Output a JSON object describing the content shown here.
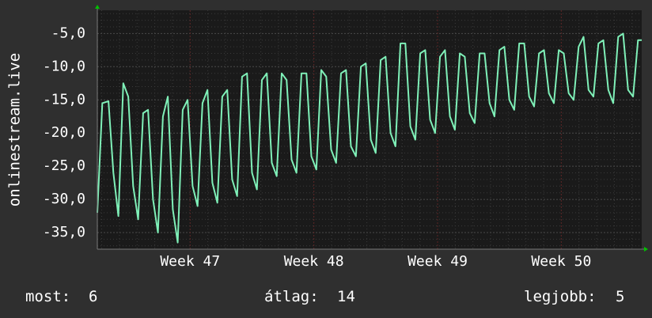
{
  "chart_data": {
    "type": "line",
    "title": "",
    "xlabel": "",
    "ylabel": "onlinestream.live",
    "x_tick_labels": [
      "Week 47",
      "Week 48",
      "Week 49",
      "Week 50"
    ],
    "y_tick_labels": [
      "-5,0",
      "-10,0",
      "-15,0",
      "-20,0",
      "-25,0",
      "-30,0",
      "-35,0"
    ],
    "y_ticks": [
      -5,
      -10,
      -15,
      -20,
      -25,
      -30,
      -35
    ],
    "ylim": [
      -37.5,
      -1.5
    ],
    "xlim_weeks": [
      46.25,
      50.65
    ],
    "grid": true,
    "series": [
      {
        "color": "#7ff0b8",
        "x_unit": "week",
        "points": [
          [
            46.25,
            -32.0
          ],
          [
            46.29,
            -15.5
          ],
          [
            46.34,
            -15.2
          ],
          [
            46.38,
            -26.0
          ],
          [
            46.42,
            -32.5
          ],
          [
            46.46,
            -12.5
          ],
          [
            46.5,
            -14.5
          ],
          [
            46.54,
            -28.0
          ],
          [
            46.58,
            -33.0
          ],
          [
            46.62,
            -17.0
          ],
          [
            46.66,
            -16.5
          ],
          [
            46.7,
            -30.0
          ],
          [
            46.74,
            -35.0
          ],
          [
            46.78,
            -17.5
          ],
          [
            46.82,
            -14.5
          ],
          [
            46.86,
            -31.5
          ],
          [
            46.9,
            -36.5
          ],
          [
            46.94,
            -16.5
          ],
          [
            46.98,
            -15.0
          ],
          [
            47.02,
            -28.0
          ],
          [
            47.06,
            -31.0
          ],
          [
            47.1,
            -15.5
          ],
          [
            47.14,
            -13.5
          ],
          [
            47.18,
            -27.5
          ],
          [
            47.22,
            -30.5
          ],
          [
            47.26,
            -14.5
          ],
          [
            47.3,
            -13.5
          ],
          [
            47.34,
            -27.0
          ],
          [
            47.38,
            -29.5
          ],
          [
            47.42,
            -11.5
          ],
          [
            47.46,
            -11.0
          ],
          [
            47.5,
            -26.0
          ],
          [
            47.54,
            -28.5
          ],
          [
            47.58,
            -12.0
          ],
          [
            47.62,
            -11.0
          ],
          [
            47.66,
            -24.5
          ],
          [
            47.7,
            -26.5
          ],
          [
            47.74,
            -11.0
          ],
          [
            47.78,
            -12.0
          ],
          [
            47.82,
            -24.0
          ],
          [
            47.86,
            -26.0
          ],
          [
            47.9,
            -11.0
          ],
          [
            47.94,
            -11.0
          ],
          [
            47.98,
            -23.5
          ],
          [
            48.02,
            -25.5
          ],
          [
            48.06,
            -10.5
          ],
          [
            48.1,
            -11.5
          ],
          [
            48.14,
            -22.5
          ],
          [
            48.18,
            -24.5
          ],
          [
            48.22,
            -11.0
          ],
          [
            48.26,
            -10.5
          ],
          [
            48.3,
            -22.0
          ],
          [
            48.34,
            -23.5
          ],
          [
            48.38,
            -10.0
          ],
          [
            48.42,
            -9.5
          ],
          [
            48.46,
            -21.0
          ],
          [
            48.5,
            -23.0
          ],
          [
            48.54,
            -9.0
          ],
          [
            48.58,
            -8.5
          ],
          [
            48.62,
            -20.0
          ],
          [
            48.66,
            -22.0
          ],
          [
            48.7,
            -6.5
          ],
          [
            48.74,
            -6.5
          ],
          [
            48.78,
            -19.0
          ],
          [
            48.82,
            -21.0
          ],
          [
            48.86,
            -8.0
          ],
          [
            48.9,
            -7.5
          ],
          [
            48.94,
            -18.0
          ],
          [
            48.98,
            -20.0
          ],
          [
            49.02,
            -8.5
          ],
          [
            49.06,
            -7.5
          ],
          [
            49.1,
            -17.5
          ],
          [
            49.14,
            -19.5
          ],
          [
            49.18,
            -8.0
          ],
          [
            49.22,
            -8.5
          ],
          [
            49.26,
            -17.0
          ],
          [
            49.3,
            -18.5
          ],
          [
            49.34,
            -8.0
          ],
          [
            49.38,
            -8.0
          ],
          [
            49.42,
            -15.5
          ],
          [
            49.46,
            -17.5
          ],
          [
            49.5,
            -7.5
          ],
          [
            49.54,
            -7.0
          ],
          [
            49.58,
            -15.0
          ],
          [
            49.62,
            -16.5
          ],
          [
            49.66,
            -6.5
          ],
          [
            49.7,
            -6.5
          ],
          [
            49.74,
            -14.5
          ],
          [
            49.78,
            -16.0
          ],
          [
            49.82,
            -8.0
          ],
          [
            49.86,
            -7.5
          ],
          [
            49.9,
            -14.0
          ],
          [
            49.94,
            -15.5
          ],
          [
            49.98,
            -7.5
          ],
          [
            50.02,
            -8.0
          ],
          [
            50.06,
            -14.0
          ],
          [
            50.1,
            -15.0
          ],
          [
            50.14,
            -7.0
          ],
          [
            50.18,
            -5.5
          ],
          [
            50.22,
            -13.5
          ],
          [
            50.26,
            -14.5
          ],
          [
            50.3,
            -6.5
          ],
          [
            50.34,
            -6.0
          ],
          [
            50.38,
            -13.5
          ],
          [
            50.42,
            -15.5
          ],
          [
            50.46,
            -5.5
          ],
          [
            50.5,
            -5.0
          ],
          [
            50.54,
            -13.5
          ],
          [
            50.58,
            -14.5
          ],
          [
            50.62,
            -6.0
          ],
          [
            50.65,
            -6.0
          ]
        ]
      }
    ]
  },
  "footer": {
    "now_label": "most:",
    "now_value": "6",
    "avg_label": "átlag:",
    "avg_value": "14",
    "best_label": "legjobb:",
    "best_value": "5"
  },
  "colors": {
    "background": "#2f2f2f",
    "plot_area": "#1a1a1a",
    "grid_minor": "#3a3a3a",
    "grid_major_v": "#5a2424",
    "line": "#7ff0b8",
    "arrow": "#00c000",
    "text": "#ffffff"
  }
}
